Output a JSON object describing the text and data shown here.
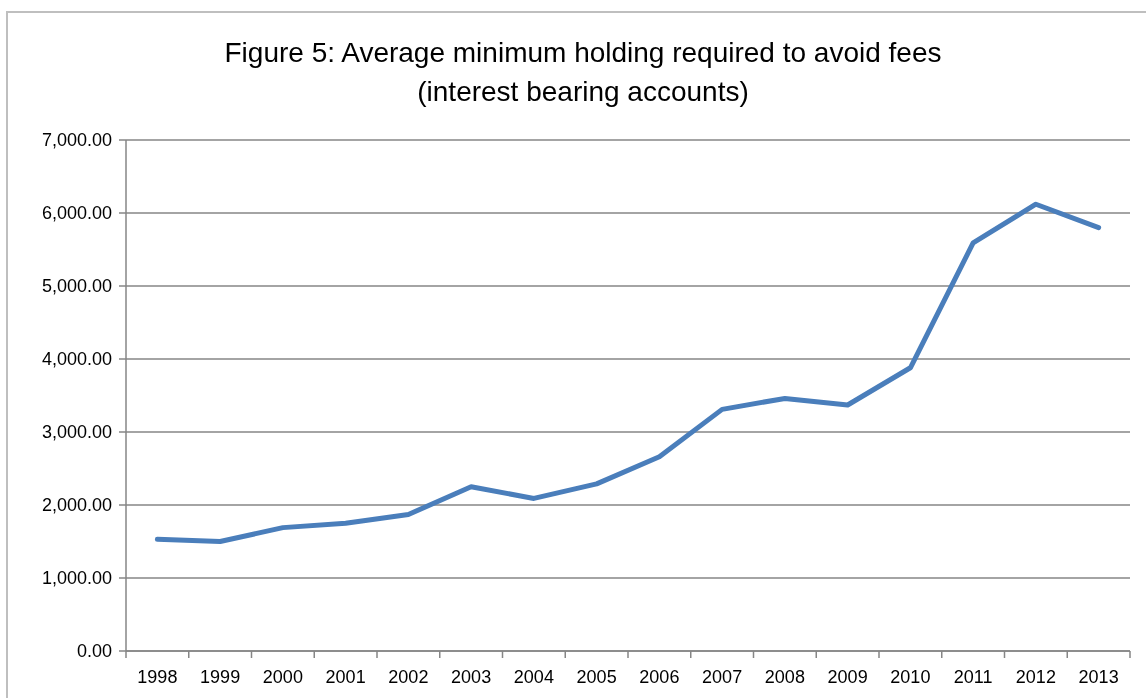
{
  "chart_data": {
    "type": "line",
    "title": "Figure 5: Average minimum holding required to avoid fees\n(interest bearing accounts)",
    "categories": [
      "1998",
      "1999",
      "2000",
      "2001",
      "2002",
      "2003",
      "2004",
      "2005",
      "2006",
      "2007",
      "2008",
      "2009",
      "2010",
      "2011",
      "2012",
      "2013"
    ],
    "series": [
      {
        "color": "#4a7ebb",
        "values": [
          1530,
          1500,
          1690,
          1750,
          1870,
          2250,
          2090,
          2290,
          2660,
          3310,
          3460,
          3370,
          3880,
          5590,
          6120,
          5800
        ]
      }
    ],
    "ylim": [
      0,
      7000
    ],
    "yticks": [
      {
        "value": 0,
        "label": "0.00"
      },
      {
        "value": 1000,
        "label": "1,000.00"
      },
      {
        "value": 2000,
        "label": "2,000.00"
      },
      {
        "value": 3000,
        "label": "3,000.00"
      },
      {
        "value": 4000,
        "label": "4,000.00"
      },
      {
        "value": 5000,
        "label": "5,000.00"
      },
      {
        "value": 6000,
        "label": "6,000.00"
      },
      {
        "value": 7000,
        "label": "7,000.00"
      }
    ],
    "grid": "y",
    "marker": "none",
    "line_style": "solid"
  }
}
